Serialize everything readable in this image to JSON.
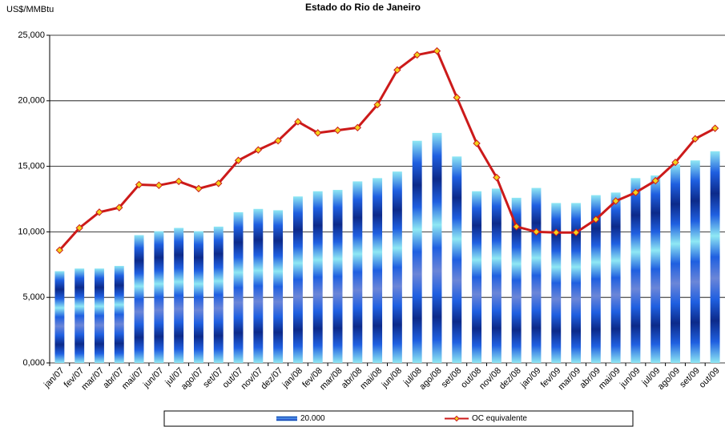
{
  "chart_data": {
    "type": "bar-line",
    "title": "Estado do Rio de Janeiro",
    "y_label": "US$/MMBtu",
    "categories": [
      "jan/07",
      "fev/07",
      "mar/07",
      "abr/07",
      "mai/07",
      "jun/07",
      "jul/07",
      "ago/07",
      "set/07",
      "out/07",
      "nov/07",
      "dez/07",
      "jan/08",
      "fev/08",
      "mar/08",
      "abr/08",
      "mai/08",
      "jun/08",
      "jul/08",
      "ago/08",
      "set/08",
      "out/08",
      "nov/08",
      "dez/08",
      "jan/09",
      "fev/09",
      "mar/09",
      "abr/09",
      "mai/09",
      "jun/09",
      "jul/09",
      "ago/09",
      "set/09",
      "out/09"
    ],
    "series": [
      {
        "name": "20.000",
        "kind": "bar",
        "color": "#1f5fe0",
        "values": [
          7000,
          7200,
          7200,
          7400,
          9750,
          10050,
          10300,
          10050,
          10400,
          11500,
          11750,
          11650,
          12700,
          13100,
          13200,
          13850,
          14100,
          14600,
          16950,
          17550,
          15750,
          13100,
          13300,
          12600,
          13350,
          12200,
          12200,
          12800,
          13000,
          14100,
          14300,
          15150,
          15450,
          16150
        ]
      },
      {
        "name": "OC equivalente",
        "kind": "line",
        "color": "#cc1a1a",
        "marker_color": "#f2d21b",
        "values": [
          8600,
          10300,
          11500,
          11850,
          13600,
          13550,
          13850,
          13300,
          13700,
          15450,
          16250,
          16950,
          18400,
          17550,
          17750,
          17950,
          19700,
          22350,
          23500,
          23800,
          20250,
          16750,
          14150,
          10400,
          10000,
          9950,
          9950,
          10950,
          12350,
          13000,
          13900,
          15300,
          17100,
          17900
        ]
      }
    ],
    "ylim": [
      0,
      25000
    ],
    "yticks": [
      {
        "value": 0,
        "label": "0,000"
      },
      {
        "value": 5000,
        "label": "5,000"
      },
      {
        "value": 10000,
        "label": "10,000"
      },
      {
        "value": 15000,
        "label": "15,000"
      },
      {
        "value": 20000,
        "label": "20,000"
      },
      {
        "value": 25000,
        "label": "25,000"
      }
    ],
    "grid": true
  }
}
